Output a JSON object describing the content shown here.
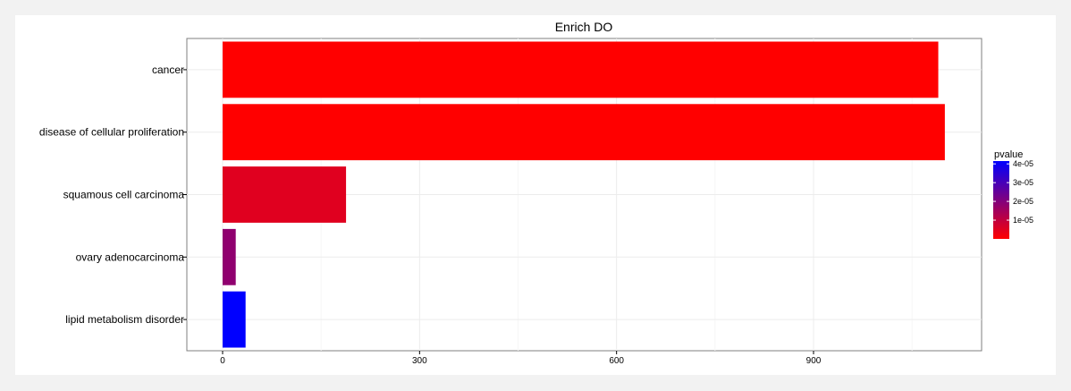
{
  "chart_data": {
    "type": "bar",
    "orientation": "horizontal",
    "title": "Enrich DO",
    "xlabel": "",
    "ylabel": "",
    "categories": [
      "cancer",
      "disease of cellular proliferation",
      "squamous cell carcinoma",
      "ovary adenocarcinoma",
      "lipid metabolism disorder"
    ],
    "values": [
      1090,
      1100,
      188,
      20,
      35
    ],
    "pvalues": [
      0.0,
      0.0,
      5e-06,
      1.8e-05,
      4.15e-05
    ],
    "xlim": [
      -50,
      1150
    ],
    "xticks": [
      0,
      300,
      600,
      900
    ],
    "grid": true,
    "legend": {
      "title": "pvalue",
      "placement": "right",
      "color_low": "#ff0000",
      "color_high": "#0000ff",
      "range": [
        0,
        4.15e-05
      ],
      "ticks": [
        {
          "value": 4e-05,
          "label": "4e-05"
        },
        {
          "value": 3e-05,
          "label": "3e-05"
        },
        {
          "value": 2e-05,
          "label": "2e-05"
        },
        {
          "value": 1e-05,
          "label": "1e-05"
        }
      ]
    }
  }
}
